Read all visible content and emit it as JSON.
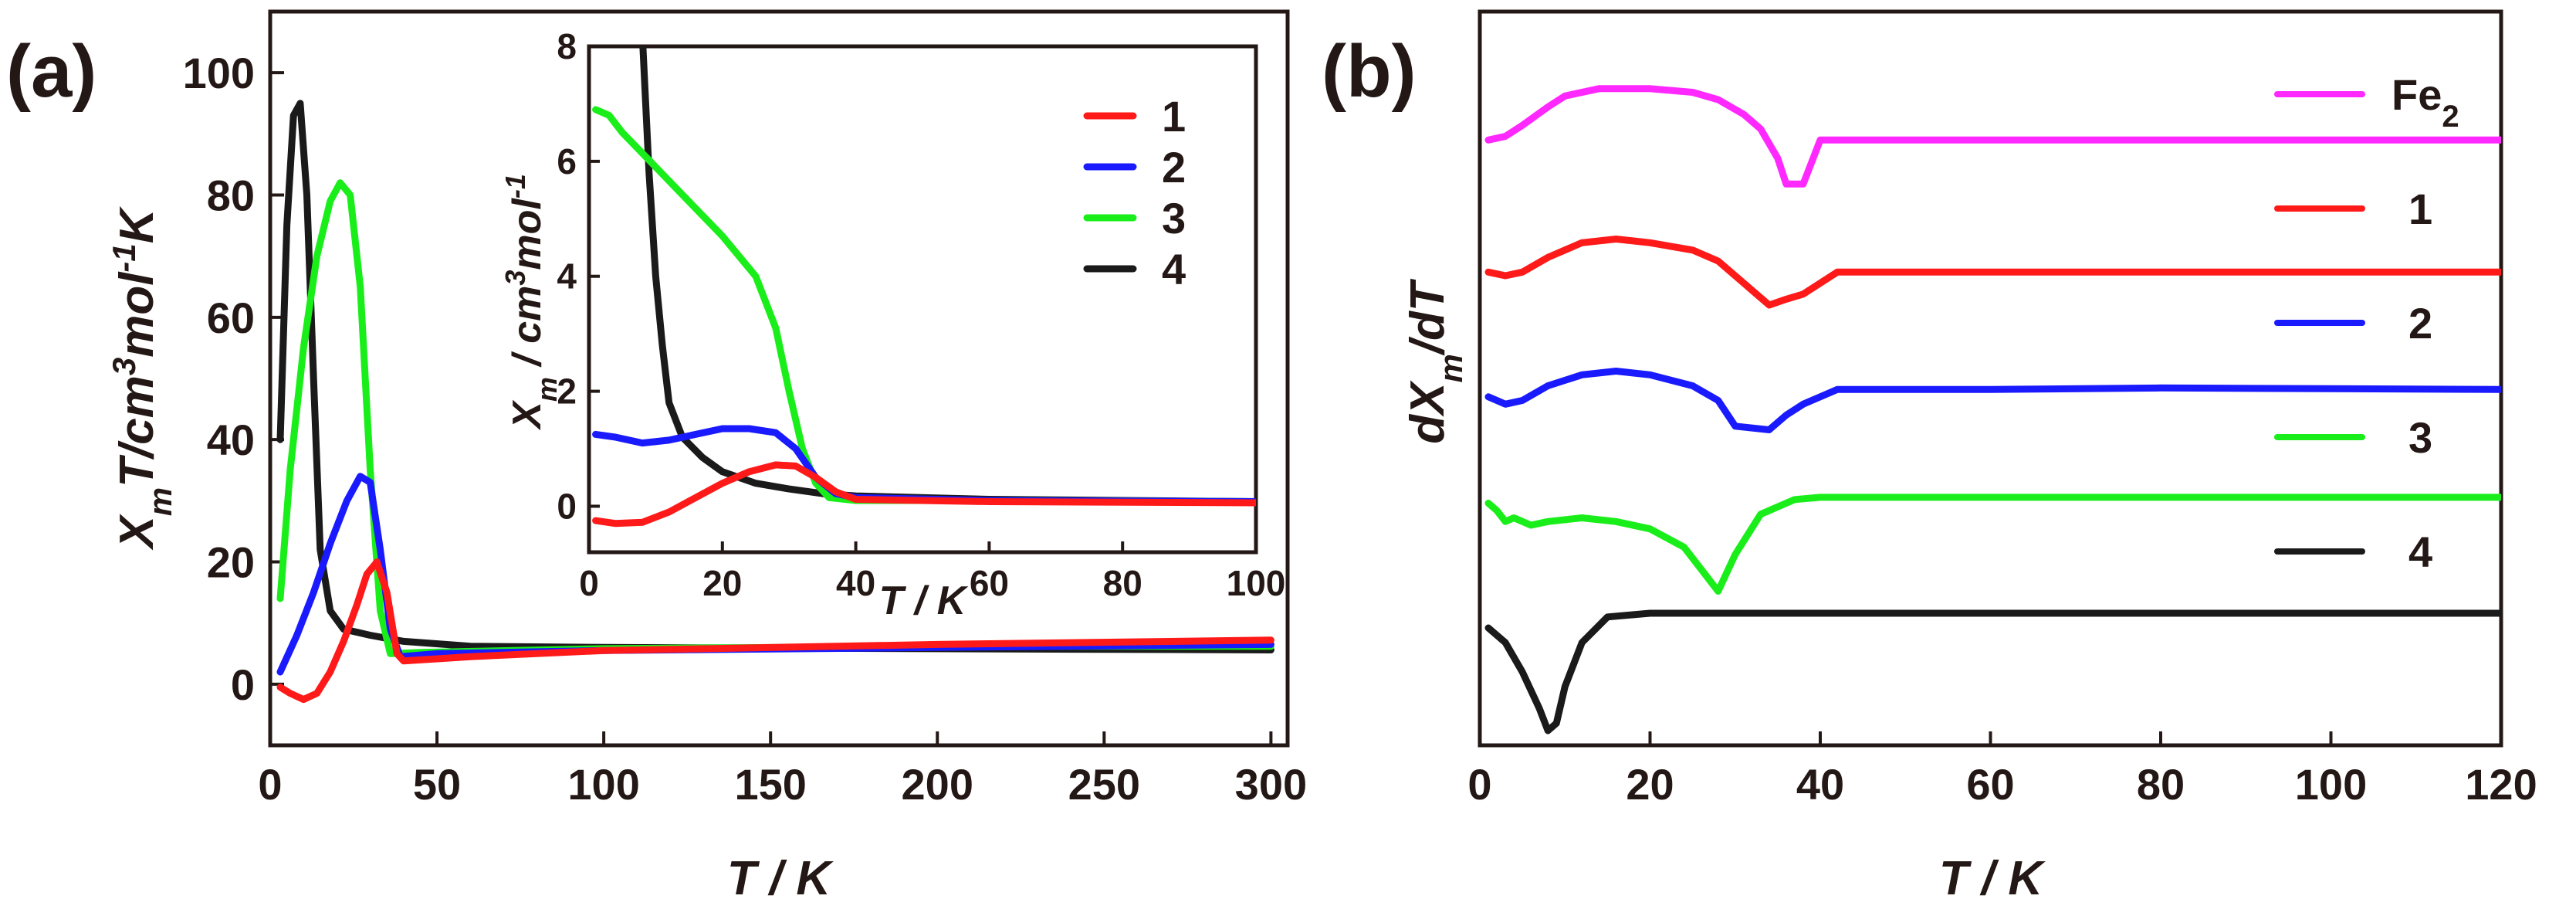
{
  "panel_labels": {
    "a": "(a)",
    "b": "(b)"
  },
  "colors": {
    "1": "#ff1a1a",
    "2": "#1a1aff",
    "3": "#1aee1a",
    "4": "#1a1a1a",
    "Fe2": "#ff28ff"
  },
  "chart_data": [
    {
      "id": "a-main",
      "type": "line",
      "title": "",
      "xlabel_italic": "T",
      "xlabel_rest": " / K",
      "ylabel": "X",
      "ylabel_sub": "m",
      "ylabel_rest1": "T/cm",
      "ylabel_sup1": "3",
      "ylabel_rest2": "mol",
      "ylabel_sup2": "-1",
      "ylabel_rest3": "K",
      "xlim": [
        0,
        305
      ],
      "ylim": [
        -10,
        110
      ],
      "xticks": [
        0,
        50,
        100,
        150,
        200,
        250,
        300
      ],
      "yticks": [
        0,
        20,
        40,
        60,
        80,
        100
      ],
      "series": [
        {
          "name": "4",
          "color": "#1a1a1a",
          "points": [
            [
              3,
              40
            ],
            [
              5,
              75
            ],
            [
              7,
              93
            ],
            [
              9,
              95
            ],
            [
              11,
              80
            ],
            [
              13,
              50
            ],
            [
              15,
              22
            ],
            [
              18,
              12
            ],
            [
              22,
              9
            ],
            [
              30,
              8
            ],
            [
              40,
              7
            ],
            [
              60,
              6.2
            ],
            [
              100,
              6
            ],
            [
              200,
              5.8
            ],
            [
              300,
              5.6
            ]
          ]
        },
        {
          "name": "3",
          "color": "#1aee1a",
          "points": [
            [
              3,
              14
            ],
            [
              6,
              35
            ],
            [
              10,
              55
            ],
            [
              14,
              70
            ],
            [
              18,
              79
            ],
            [
              21,
              82
            ],
            [
              24,
              80
            ],
            [
              27,
              65
            ],
            [
              30,
              35
            ],
            [
              33,
              12
            ],
            [
              36,
              5
            ],
            [
              45,
              5.2
            ],
            [
              100,
              5.8
            ],
            [
              200,
              6.2
            ],
            [
              300,
              6.2
            ]
          ]
        },
        {
          "name": "2",
          "color": "#1a1aff",
          "points": [
            [
              3,
              2
            ],
            [
              8,
              8
            ],
            [
              13,
              15
            ],
            [
              18,
              23
            ],
            [
              23,
              30
            ],
            [
              27,
              34
            ],
            [
              30,
              33
            ],
            [
              33,
              22
            ],
            [
              36,
              9
            ],
            [
              39,
              4.5
            ],
            [
              50,
              5
            ],
            [
              100,
              5.5
            ],
            [
              200,
              6
            ],
            [
              300,
              6.5
            ]
          ]
        },
        {
          "name": "1",
          "color": "#ff1a1a",
          "points": [
            [
              3,
              -0.5
            ],
            [
              6,
              -1.5
            ],
            [
              10,
              -2.5
            ],
            [
              14,
              -1.5
            ],
            [
              18,
              2
            ],
            [
              22,
              7
            ],
            [
              26,
              13
            ],
            [
              29,
              18
            ],
            [
              32,
              20
            ],
            [
              35,
              15
            ],
            [
              38,
              5
            ],
            [
              40,
              3.8
            ],
            [
              60,
              4.5
            ],
            [
              100,
              5.5
            ],
            [
              200,
              6.5
            ],
            [
              300,
              7.2
            ]
          ]
        }
      ],
      "legend": {
        "placement": "inside inset, top-right",
        "entries": [
          "1",
          "2",
          "3",
          "4"
        ]
      }
    },
    {
      "id": "a-inset",
      "type": "line",
      "xlabel_italic": "T",
      "xlabel_rest": " / K",
      "ylabel": "X",
      "ylabel_sub": "m",
      "ylabel_rest1": " / cm",
      "ylabel_sup1": "3",
      "ylabel_rest2": "mol",
      "ylabel_sup2": "-1",
      "xlim": [
        0,
        100
      ],
      "ylim": [
        -0.8,
        8
      ],
      "xticks": [
        0,
        20,
        40,
        60,
        80,
        100
      ],
      "yticks": [
        0,
        2,
        4,
        6,
        8
      ],
      "series": [
        {
          "name": "4",
          "color": "#1a1a1a",
          "points": [
            [
              8,
              8.2
            ],
            [
              9,
              5.8
            ],
            [
              10,
              4.0
            ],
            [
              11,
              2.8
            ],
            [
              12,
              1.8
            ],
            [
              14,
              1.2
            ],
            [
              17,
              0.85
            ],
            [
              20,
              0.6
            ],
            [
              25,
              0.4
            ],
            [
              30,
              0.3
            ],
            [
              35,
              0.22
            ],
            [
              40,
              0.18
            ],
            [
              60,
              0.12
            ],
            [
              100,
              0.08
            ]
          ]
        },
        {
          "name": "3",
          "color": "#1aee1a",
          "points": [
            [
              1,
              6.9
            ],
            [
              3,
              6.8
            ],
            [
              5,
              6.5
            ],
            [
              10,
              5.9
            ],
            [
              15,
              5.3
            ],
            [
              20,
              4.7
            ],
            [
              25,
              4.0
            ],
            [
              28,
              3.1
            ],
            [
              30,
              2.0
            ],
            [
              32,
              1.0
            ],
            [
              34,
              0.4
            ],
            [
              36,
              0.15
            ],
            [
              40,
              0.1
            ],
            [
              60,
              0.1
            ],
            [
              100,
              0.08
            ]
          ]
        },
        {
          "name": "2",
          "color": "#1a1aff",
          "points": [
            [
              1,
              1.25
            ],
            [
              4,
              1.2
            ],
            [
              8,
              1.1
            ],
            [
              12,
              1.15
            ],
            [
              16,
              1.25
            ],
            [
              20,
              1.35
            ],
            [
              24,
              1.35
            ],
            [
              28,
              1.28
            ],
            [
              31,
              1.0
            ],
            [
              34,
              0.5
            ],
            [
              37,
              0.22
            ],
            [
              40,
              0.15
            ],
            [
              60,
              0.1
            ],
            [
              100,
              0.08
            ]
          ]
        },
        {
          "name": "1",
          "color": "#ff1a1a",
          "points": [
            [
              1,
              -0.25
            ],
            [
              4,
              -0.3
            ],
            [
              8,
              -0.28
            ],
            [
              12,
              -0.1
            ],
            [
              16,
              0.15
            ],
            [
              20,
              0.4
            ],
            [
              24,
              0.6
            ],
            [
              28,
              0.72
            ],
            [
              31,
              0.7
            ],
            [
              34,
              0.5
            ],
            [
              37,
              0.25
            ],
            [
              40,
              0.12
            ],
            [
              60,
              0.08
            ],
            [
              100,
              0.06
            ]
          ]
        }
      ]
    },
    {
      "id": "b",
      "type": "line",
      "xlabel_italic": "T",
      "xlabel_rest": " / K",
      "ylabel": "dX",
      "ylabel_sub": "m",
      "ylabel_rest1": "/dT",
      "xlim": [
        0,
        120
      ],
      "ylim": [
        0,
        100
      ],
      "xticks": [
        0,
        20,
        40,
        60,
        80,
        100,
        120
      ],
      "y_units": "arbitrary (vertically offset curves, no y tick labels)",
      "series": [
        {
          "name": "Fe2",
          "color": "#ff28ff",
          "points": [
            [
              1,
              82.5
            ],
            [
              3,
              83
            ],
            [
              5,
              84.5
            ],
            [
              8,
              87
            ],
            [
              10,
              88.5
            ],
            [
              14,
              89.5
            ],
            [
              20,
              89.5
            ],
            [
              25,
              89
            ],
            [
              28,
              88
            ],
            [
              31,
              86
            ],
            [
              33,
              84
            ],
            [
              35,
              80
            ],
            [
              36,
              76.5
            ],
            [
              38,
              76.5
            ],
            [
              40,
              82.5
            ],
            [
              60,
              82.5
            ],
            [
              120,
              82.5
            ]
          ]
        },
        {
          "name": "1",
          "color": "#ff1a1a",
          "points": [
            [
              1,
              64.5
            ],
            [
              3,
              64
            ],
            [
              5,
              64.5
            ],
            [
              8,
              66.5
            ],
            [
              12,
              68.5
            ],
            [
              16,
              69
            ],
            [
              20,
              68.5
            ],
            [
              25,
              67.5
            ],
            [
              28,
              66
            ],
            [
              31,
              63
            ],
            [
              34,
              60
            ],
            [
              36,
              60.8
            ],
            [
              38,
              61.5
            ],
            [
              42,
              64.5
            ],
            [
              60,
              64.5
            ],
            [
              120,
              64.5
            ]
          ]
        },
        {
          "name": "2",
          "color": "#1a1aff",
          "points": [
            [
              1,
              47.5
            ],
            [
              3,
              46.5
            ],
            [
              5,
              47
            ],
            [
              8,
              49
            ],
            [
              12,
              50.5
            ],
            [
              16,
              51
            ],
            [
              20,
              50.5
            ],
            [
              25,
              49
            ],
            [
              28,
              47
            ],
            [
              30,
              43.5
            ],
            [
              34,
              43
            ],
            [
              36,
              45
            ],
            [
              38,
              46.5
            ],
            [
              42,
              48.5
            ],
            [
              60,
              48.5
            ],
            [
              80,
              48.7
            ],
            [
              120,
              48.5
            ]
          ]
        },
        {
          "name": "3",
          "color": "#1aee1a",
          "points": [
            [
              1,
              33
            ],
            [
              2,
              32
            ],
            [
              3,
              30.5
            ],
            [
              4,
              31
            ],
            [
              6,
              30
            ],
            [
              8,
              30.5
            ],
            [
              12,
              31
            ],
            [
              16,
              30.5
            ],
            [
              20,
              29.5
            ],
            [
              24,
              27
            ],
            [
              26,
              24
            ],
            [
              28,
              21
            ],
            [
              30,
              26
            ],
            [
              33,
              31.5
            ],
            [
              37,
              33.5
            ],
            [
              40,
              33.8
            ],
            [
              60,
              33.8
            ],
            [
              120,
              33.8
            ]
          ]
        },
        {
          "name": "4",
          "color": "#1a1a1a",
          "points": [
            [
              1,
              16
            ],
            [
              3,
              14
            ],
            [
              5,
              10
            ],
            [
              7,
              5
            ],
            [
              8,
              2
            ],
            [
              9,
              3
            ],
            [
              10,
              8
            ],
            [
              12,
              14
            ],
            [
              15,
              17.5
            ],
            [
              20,
              18
            ],
            [
              40,
              18
            ],
            [
              80,
              18
            ],
            [
              120,
              18
            ]
          ]
        }
      ],
      "legend": {
        "placement": "top-right",
        "entries": [
          "Fe",
          "1",
          "2",
          "3",
          "4"
        ],
        "fe_subscript": "2"
      }
    }
  ]
}
